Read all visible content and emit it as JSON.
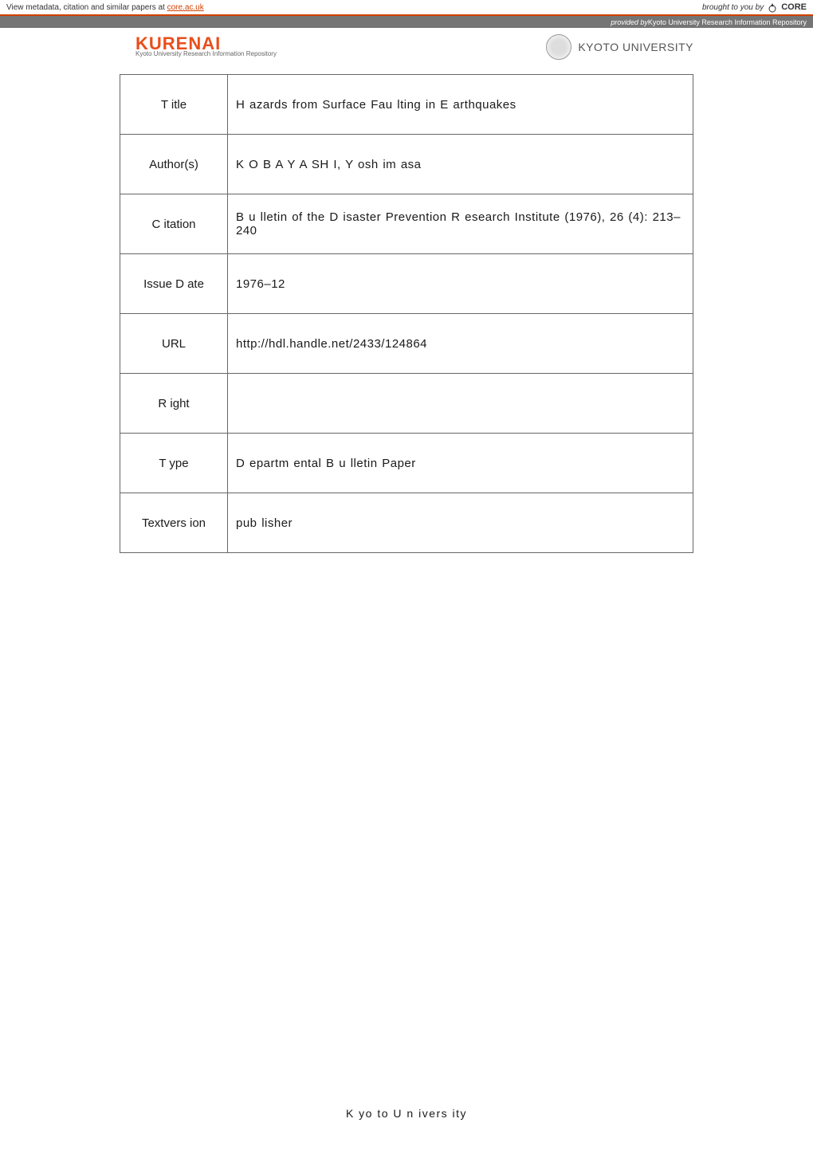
{
  "topbar": {
    "left_prefix": "View metadata, citation and similar papers at ",
    "left_link": "core.ac.uk",
    "brought": "brought to you by",
    "core": "CORE"
  },
  "subbar": {
    "provided": "provided by ",
    "source": "Kyoto University Research Information Repository"
  },
  "header": {
    "kurenai": "KURENAI",
    "kurenai_sub": "Kyoto University Research Information Repository",
    "kyoto": "KYOTO UNIVERSITY"
  },
  "metadata": {
    "rows": [
      {
        "label": "T itle",
        "value": "H azards from  Surface Fau lting  in E arthquakes"
      },
      {
        "label": "Author(s)",
        "value": "K O B A Y A SH I, Y osh im asa"
      },
      {
        "label": "C itation",
        "value": "B u lletin of the D isaster Prevention R esearch  Institute  (1976), 26 (4): 213–240"
      },
      {
        "label": "Issue D ate",
        "value": "1976–12"
      },
      {
        "label": "URL",
        "value": "http://hdl.handle.net/2433/124864"
      },
      {
        "label": "R ight",
        "value": ""
      },
      {
        "label": "T ype",
        "value": "D epartm ental B u lletin Paper"
      },
      {
        "label": "Textvers ion",
        "value": "pub lisher"
      }
    ]
  },
  "footer": "K yo to  U n ivers ity"
}
